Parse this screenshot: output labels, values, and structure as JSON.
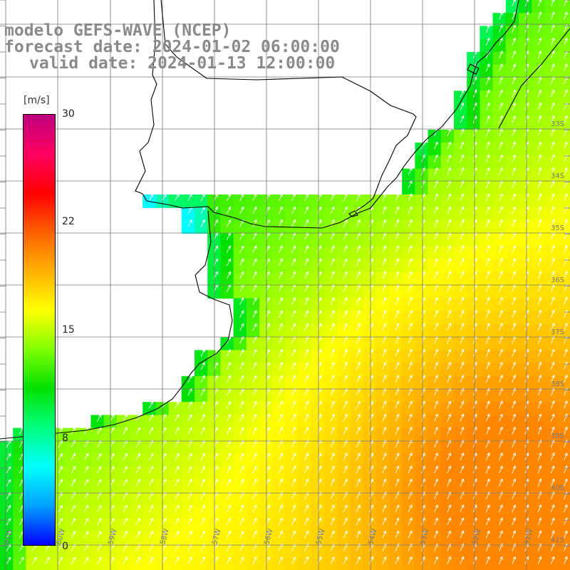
{
  "title": {
    "line1": "modelo GEFS-WAVE (NCEP)",
    "line2": "forecast date: 2024-01-02 06:00:00",
    "line3": "valid date: 2024-01-13 12:00:00"
  },
  "colorbar": {
    "unit": "[m/s]",
    "ticks": [
      "30",
      "22",
      "15",
      "8",
      "0"
    ],
    "tick_values": [
      30,
      22,
      15,
      8,
      0
    ],
    "colors": [
      "#0000ff",
      "#00a0ff",
      "#00ffff",
      "#00ff80",
      "#00e000",
      "#80ff00",
      "#ffff00",
      "#ffb000",
      "#ff6000",
      "#ff0000",
      "#ff0060",
      "#c00080"
    ]
  },
  "map": {
    "lon_labels": [
      "61W",
      "60W",
      "59W",
      "58W",
      "57W",
      "56W",
      "55W",
      "54W",
      "53W",
      "52W",
      "51W"
    ],
    "lat_labels": [
      "33S",
      "34S",
      "35S",
      "36S",
      "37S",
      "38S",
      "39S",
      "40S",
      "41S"
    ]
  }
}
